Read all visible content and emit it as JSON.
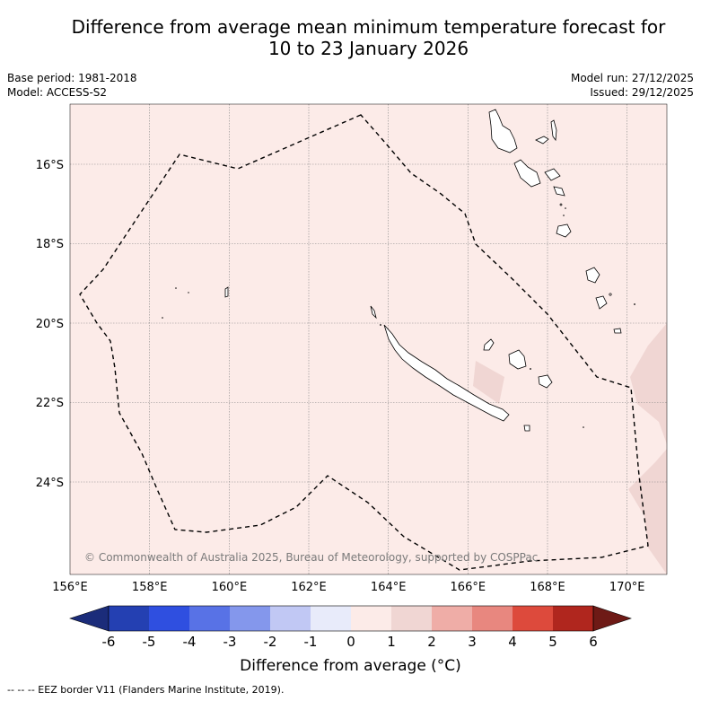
{
  "title": {
    "line1": "Difference from average mean minimum temperature forecast for",
    "line2": "10 to 23 January 2026"
  },
  "meta_left": {
    "base_period": "Base period: 1981-2018",
    "model": "Model: ACCESS-S2"
  },
  "meta_right": {
    "model_run": "Model run: 27/12/2025",
    "issued": "Issued: 29/12/2025"
  },
  "map": {
    "copyright": "© Commonwealth of Australia 2025, Bureau of Meteorology, supported by COSPPac",
    "lon_labels": [
      "156°E",
      "158°E",
      "160°E",
      "162°E",
      "164°E",
      "166°E",
      "168°E",
      "170°E"
    ],
    "lat_labels": [
      "16°S",
      "18°S",
      "20°S",
      "22°S",
      "24°S"
    ],
    "background_anomaly_class": "0 to 1",
    "colors": {
      "anomaly_0_1": "#fcebe8",
      "anomaly_1_2": "#f0d6d3",
      "land_fill": "#ffffff",
      "coast": "#000000",
      "grid": "#888888"
    }
  },
  "colorbar": {
    "ticks": [
      "-6",
      "-5",
      "-4",
      "-3",
      "-2",
      "-1",
      "0",
      "1",
      "2",
      "3",
      "4",
      "5",
      "6"
    ],
    "colors": [
      "#1b2c7a",
      "#2440b2",
      "#2f4fe0",
      "#5872e6",
      "#8497ec",
      "#c1c8f4",
      "#e8ebfa",
      "#fcebe8",
      "#f0d6d3",
      "#efada7",
      "#e8877f",
      "#dd4a3c",
      "#b0261e",
      "#6e1a16"
    ],
    "label": "Difference from average (°C)"
  },
  "footnote": "-- -- -- EEZ border V11 (Flanders Marine Institute, 2019)."
}
